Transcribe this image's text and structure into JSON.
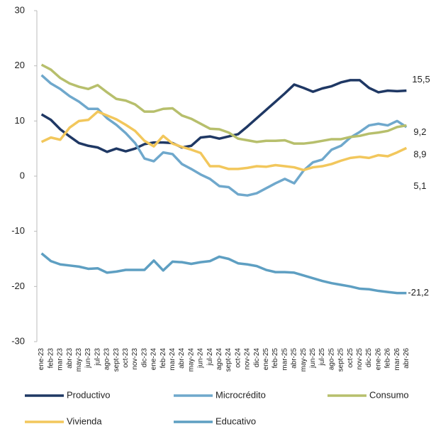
{
  "chart_data": {
    "type": "line",
    "categories": [
      "ene-23",
      "feb-23",
      "mar-23",
      "abr-23",
      "may-23",
      "jun-23",
      "jul-23",
      "ago-23",
      "sept-23",
      "oct-23",
      "nov-23",
      "dic-23",
      "ene-24",
      "feb-24",
      "mar-24",
      "abr-24",
      "may-24",
      "jun-24",
      "jul-24",
      "ago-24",
      "sept-24",
      "oct-24",
      "nov-24",
      "dic-24",
      "ene-25",
      "feb-25",
      "mar-25",
      "abr-25",
      "may-25",
      "jun-25",
      "jul-25",
      "ago-25",
      "sept-25",
      "oct-25",
      "nov-25",
      "dic-25",
      "ene-26",
      "feb-26",
      "mar-26",
      "abr-26"
    ],
    "series": [
      {
        "name": "Productivo",
        "color": "#1f3864",
        "values": [
          11.2,
          10.2,
          8.5,
          7.2,
          6,
          5.5,
          5.2,
          4.4,
          5,
          4.5,
          5,
          5.8,
          6.1,
          6.1,
          6,
          5.2,
          5.5,
          7,
          7.2,
          6.8,
          7.2,
          7.6,
          9,
          10.5,
          12,
          13.5,
          15,
          16.6,
          16,
          15.3,
          15.9,
          16.3,
          17,
          17.4,
          17.4,
          16,
          15.2,
          15.5,
          15.4,
          15.5
        ],
        "end_label": "15,5"
      },
      {
        "name": "Microcrédito",
        "color": "#6fa8cc",
        "values": [
          18.3,
          16.8,
          15.8,
          14.5,
          13.5,
          12.2,
          12.2,
          10.5,
          9.3,
          7.8,
          6,
          3.2,
          2.7,
          4.3,
          4,
          2.2,
          1.3,
          0.3,
          -0.5,
          -1.8,
          -2,
          -3.3,
          -3.5,
          -3.1,
          -2.2,
          -1.3,
          -0.5,
          -1.3,
          1,
          2.5,
          3,
          4.8,
          5.5,
          7,
          8,
          9.2,
          9.5,
          9.2,
          10,
          8.9
        ],
        "end_label": "8,9"
      },
      {
        "name": "Consumo",
        "color": "#b7bf6c",
        "values": [
          20.2,
          19.3,
          17.8,
          16.8,
          16.2,
          15.8,
          16.5,
          15.2,
          14,
          13.7,
          13,
          11.7,
          11.7,
          12.2,
          12.3,
          11,
          10.4,
          9.5,
          8.6,
          8.5,
          7.9,
          6.8,
          6.5,
          6.2,
          6.4,
          6.4,
          6.5,
          5.9,
          5.9,
          6.1,
          6.4,
          6.7,
          6.7,
          7.1,
          7.3,
          7.7,
          7.9,
          8.2,
          8.9,
          9.2
        ],
        "end_label": "9,2"
      },
      {
        "name": "Vivienda",
        "color": "#f2c75c",
        "values": [
          6.2,
          7,
          6.6,
          8.8,
          10,
          10.2,
          11.7,
          11,
          10.3,
          9.3,
          8.2,
          6.4,
          5.4,
          7.3,
          5.9,
          5.3,
          4.8,
          4.2,
          1.8,
          1.8,
          1.3,
          1.3,
          1.5,
          1.8,
          1.7,
          2,
          1.8,
          1.6,
          1.1,
          1.6,
          1.8,
          2.2,
          2.8,
          3.3,
          3.5,
          3.3,
          3.8,
          3.6,
          4.3,
          5.1
        ],
        "end_label": "5,1"
      },
      {
        "name": "Educativo",
        "color": "#5e9fc2",
        "values": [
          -14,
          -15.4,
          -16,
          -16.2,
          -16.4,
          -16.8,
          -16.7,
          -17.5,
          -17.3,
          -17,
          -17,
          -17,
          -15.3,
          -17.1,
          -15.5,
          -15.6,
          -15.9,
          -15.6,
          -15.4,
          -14.6,
          -15,
          -15.8,
          -16,
          -16.3,
          -17,
          -17.4,
          -17.4,
          -17.5,
          -18,
          -18.5,
          -19,
          -19.4,
          -19.7,
          -20,
          -20.4,
          -20.5,
          -20.8,
          -21,
          -21.2,
          -21.2
        ],
        "end_label": "-21,2"
      }
    ],
    "ylim": [
      -30,
      30
    ],
    "yticks": [
      -30,
      -20,
      -10,
      0,
      10,
      20,
      30
    ],
    "grid": false
  }
}
